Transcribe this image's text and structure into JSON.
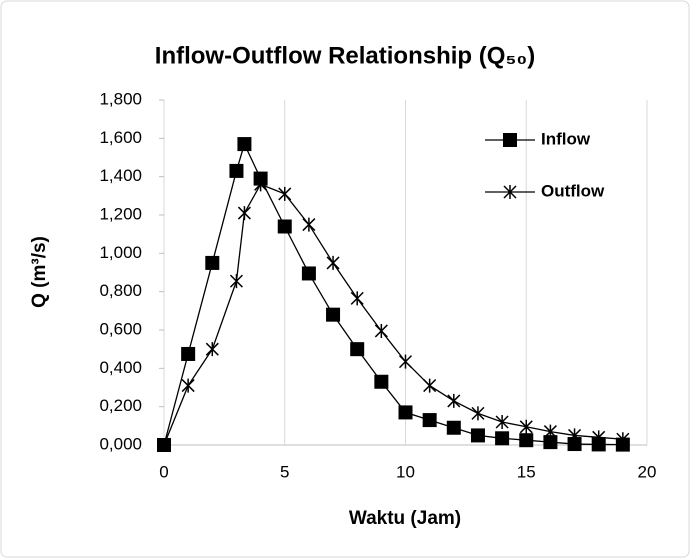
{
  "chart_data": {
    "type": "line",
    "title": "Inflow-Outflow Relationship (Q₅₀)",
    "x_label": "Waktu (Jam)",
    "y_label": "Q (m³/s)",
    "series": [
      {
        "name": "Inflow",
        "color": "#000000",
        "marker": "square",
        "x": [
          0,
          1,
          2,
          3,
          3.33,
          4,
          5,
          6,
          7,
          8,
          9,
          10,
          11,
          12,
          13,
          14,
          15,
          16,
          17,
          18,
          19
        ],
        "values": [
          0,
          0.475,
          0.95,
          1.43,
          1.57,
          1.39,
          1.14,
          0.895,
          0.68,
          0.5,
          0.33,
          0.17,
          0.13,
          0.09,
          0.05,
          0.035,
          0.025,
          0.015,
          0.005,
          0.003,
          0.002
        ]
      },
      {
        "name": "Outflow",
        "color": "#000000",
        "marker": "star",
        "x": [
          0,
          1,
          2,
          3,
          3.33,
          4,
          5,
          6,
          7,
          8,
          9,
          10,
          11,
          12,
          13,
          14,
          15,
          16,
          17,
          18,
          19
        ],
        "values": [
          0,
          0.31,
          0.5,
          0.855,
          1.21,
          1.36,
          1.31,
          1.15,
          0.95,
          0.765,
          0.595,
          0.435,
          0.31,
          0.23,
          0.165,
          0.12,
          0.095,
          0.07,
          0.05,
          0.04,
          0.03
        ]
      }
    ],
    "xlim": [
      0,
      20
    ],
    "xticks": [
      0,
      5,
      10,
      15,
      20
    ],
    "ylim": [
      0,
      1.8
    ],
    "yticks": [
      {
        "value": 0,
        "label": "0,000"
      },
      {
        "value": 0.2,
        "label": "0,200"
      },
      {
        "value": 0.4,
        "label": "0,400"
      },
      {
        "value": 0.6,
        "label": "0,600"
      },
      {
        "value": 0.8,
        "label": "0,800"
      },
      {
        "value": 1.0,
        "label": "1,000"
      },
      {
        "value": 1.2,
        "label": "1,200"
      },
      {
        "value": 1.4,
        "label": "1,400"
      },
      {
        "value": 1.6,
        "label": "1,600"
      },
      {
        "value": 1.8,
        "label": "1,800"
      }
    ],
    "grid": "x",
    "legend": "upper right"
  }
}
